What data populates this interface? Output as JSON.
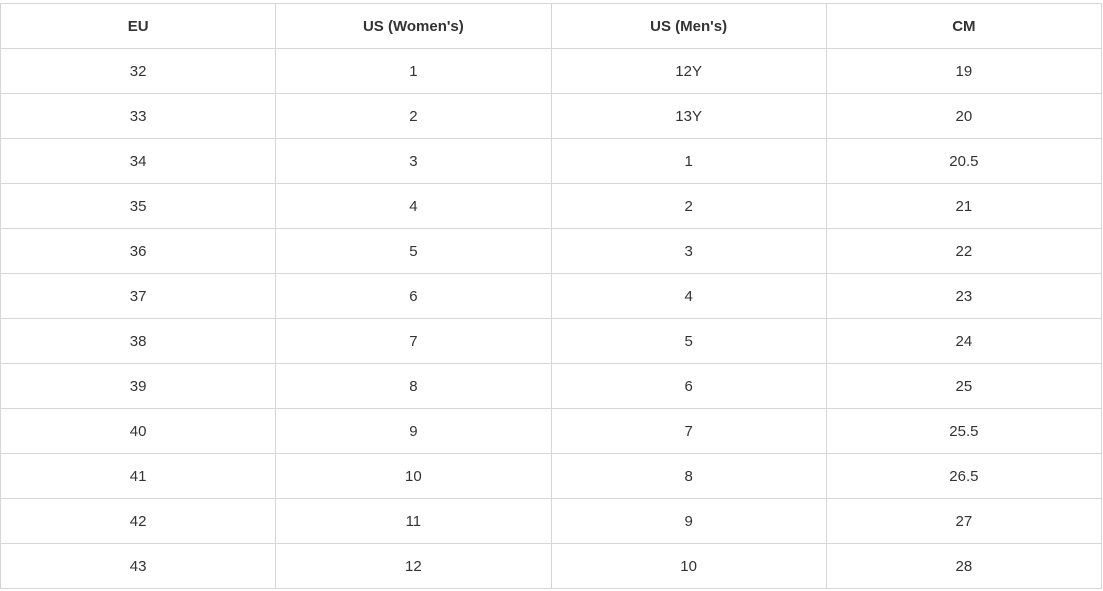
{
  "headers": [
    "EU",
    "US (Women's)",
    "US (Men's)",
    "CM"
  ],
  "rows": [
    [
      "32",
      "1",
      "12Y",
      "19"
    ],
    [
      "33",
      "2",
      "13Y",
      "20"
    ],
    [
      "34",
      "3",
      "1",
      "20.5"
    ],
    [
      "35",
      "4",
      "2",
      "21"
    ],
    [
      "36",
      "5",
      "3",
      "22"
    ],
    [
      "37",
      "6",
      "4",
      "23"
    ],
    [
      "38",
      "7",
      "5",
      "24"
    ],
    [
      "39",
      "8",
      "6",
      "25"
    ],
    [
      "40",
      "9",
      "7",
      "25.5"
    ],
    [
      "41",
      "10",
      "8",
      "26.5"
    ],
    [
      "42",
      "11",
      "9",
      "27"
    ],
    [
      "43",
      "12",
      "10",
      "28"
    ]
  ]
}
